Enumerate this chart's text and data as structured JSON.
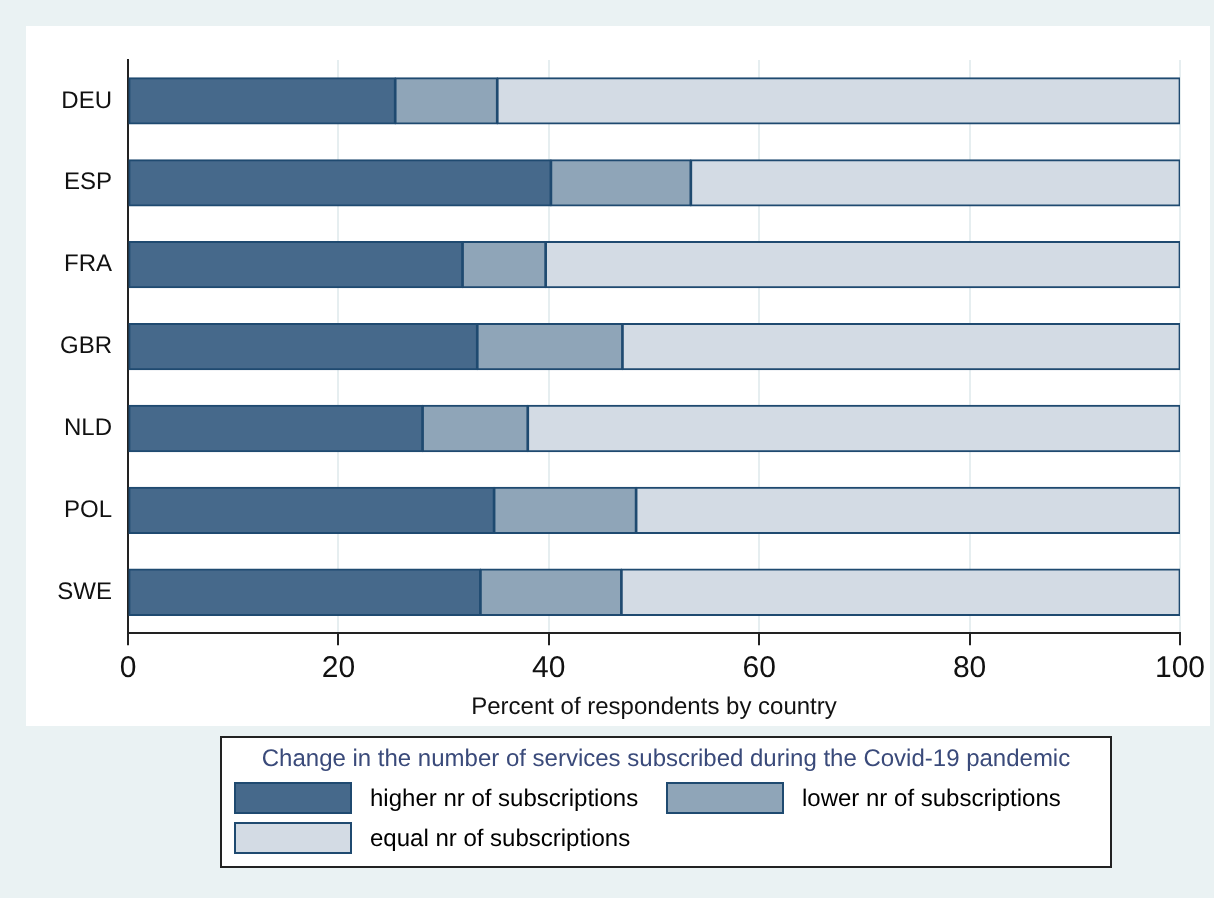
{
  "chart_data": {
    "type": "bar",
    "orientation": "horizontal",
    "stacked": true,
    "categories": [
      "DEU",
      "ESP",
      "FRA",
      "GBR",
      "NLD",
      "POL",
      "SWE"
    ],
    "series": [
      {
        "name": "higher nr of subscriptions",
        "color": "#46698b",
        "values": [
          25.4,
          40.2,
          31.8,
          33.2,
          28.0,
          34.8,
          33.5
        ]
      },
      {
        "name": "lower nr of subscriptions",
        "color": "#8fa5b8",
        "values": [
          9.7,
          13.3,
          7.9,
          13.8,
          10.0,
          13.5,
          13.4
        ]
      },
      {
        "name": "equal nr of subscriptions",
        "color": "#d3dbe4",
        "values": [
          64.9,
          46.5,
          60.3,
          53.0,
          62.0,
          51.7,
          53.1
        ]
      }
    ],
    "xlabel": "Percent of respondents by country",
    "legend_title": "Change in the number of services subscribed during the Covid-19 pandemic",
    "xlim": [
      0,
      100
    ],
    "xticks": [
      0,
      20,
      40,
      60,
      80,
      100
    ],
    "grid": "x",
    "legend": "bottom"
  }
}
